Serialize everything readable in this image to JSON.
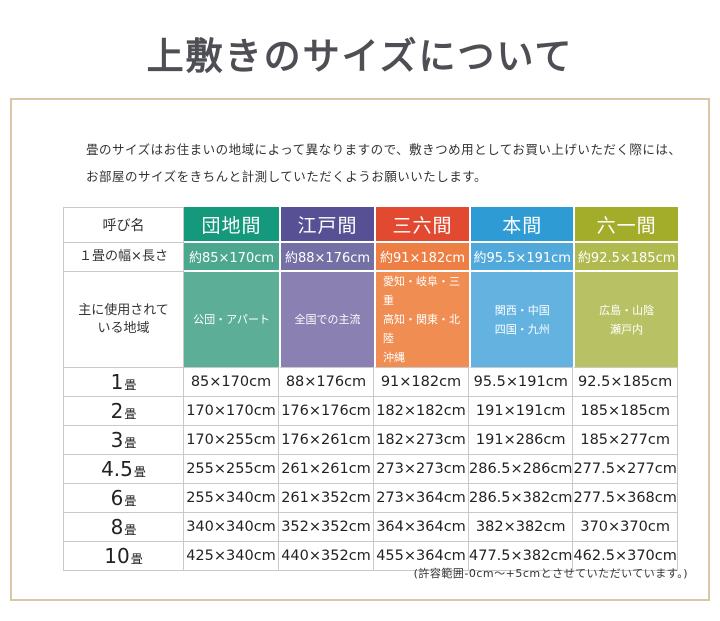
{
  "page_title": "上敷きのサイズについて",
  "intro": {
    "line1": "畳のサイズはお住まいの地域によって異なりますので、敷きつめ用としてお買い上げいただく際には、",
    "line2": "お部屋のサイズをきちんと計測していただくようお願いいたします。"
  },
  "footnote": "(許容範囲-0cm～+5cmとさせていただいています。)",
  "colors": {
    "frame_border": "#d9c7a7",
    "title_text": "#4e4e55",
    "grid_line": "#c9c9c9"
  },
  "table": {
    "corner_label": "呼び名",
    "size_row_label": "１畳の幅×長さ",
    "region_row_label_line1": "主に使用されて",
    "region_row_label_line2": "いる地域",
    "columns": [
      {
        "name": "団地間",
        "size": "約85×170cm",
        "regions": [
          "公団・アパート"
        ],
        "colors": {
          "header": "#14997c",
          "size": "#4ba88e",
          "region": "#5dae97"
        }
      },
      {
        "name": "江戸間",
        "size": "約88×176cm",
        "regions": [
          "全国での主流"
        ],
        "colors": {
          "header": "#575094",
          "size": "#746fa5",
          "region": "#8a80b2"
        }
      },
      {
        "name": "三六間",
        "size": "約91×182cm",
        "regions": [
          "愛知・岐阜・三重",
          "高知・関東・北陸",
          "沖縄"
        ],
        "colors": {
          "header": "#e14a30",
          "size": "#ee7f44",
          "region": "#f08d53"
        }
      },
      {
        "name": "本間",
        "size": "約95.5×191cm",
        "regions": [
          "関西・中国",
          "四国・九州"
        ],
        "colors": {
          "header": "#2e9bd4",
          "size": "#51a9db",
          "region": "#63b2e0"
        }
      },
      {
        "name": "六一間",
        "size": "約92.5×185cm",
        "regions": [
          "広島・山陰",
          "瀬戸内"
        ],
        "colors": {
          "header": "#a4ad2a",
          "size": "#b0ba4f",
          "region": "#b8c264"
        }
      }
    ],
    "rows": [
      {
        "num": "1",
        "unit": "畳",
        "values": [
          "85×170cm",
          "88×176cm",
          "91×182cm",
          "95.5×191cm",
          "92.5×185cm"
        ]
      },
      {
        "num": "2",
        "unit": "畳",
        "values": [
          "170×170cm",
          "176×176cm",
          "182×182cm",
          "191×191cm",
          "185×185cm"
        ]
      },
      {
        "num": "3",
        "unit": "畳",
        "values": [
          "170×255cm",
          "176×261cm",
          "182×273cm",
          "191×286cm",
          "185×277cm"
        ]
      },
      {
        "num": "4.5",
        "unit": "畳",
        "values": [
          "255×255cm",
          "261×261cm",
          "273×273cm",
          "286.5×286cm",
          "277.5×277cm"
        ]
      },
      {
        "num": "6",
        "unit": "畳",
        "values": [
          "255×340cm",
          "261×352cm",
          "273×364cm",
          "286.5×382cm",
          "277.5×368cm"
        ]
      },
      {
        "num": "8",
        "unit": "畳",
        "values": [
          "340×340cm",
          "352×352cm",
          "364×364cm",
          "382×382cm",
          "370×370cm"
        ]
      },
      {
        "num": "10",
        "unit": "畳",
        "values": [
          "425×340cm",
          "440×352cm",
          "455×364cm",
          "477.5×382cm",
          "462.5×370cm"
        ]
      }
    ]
  }
}
